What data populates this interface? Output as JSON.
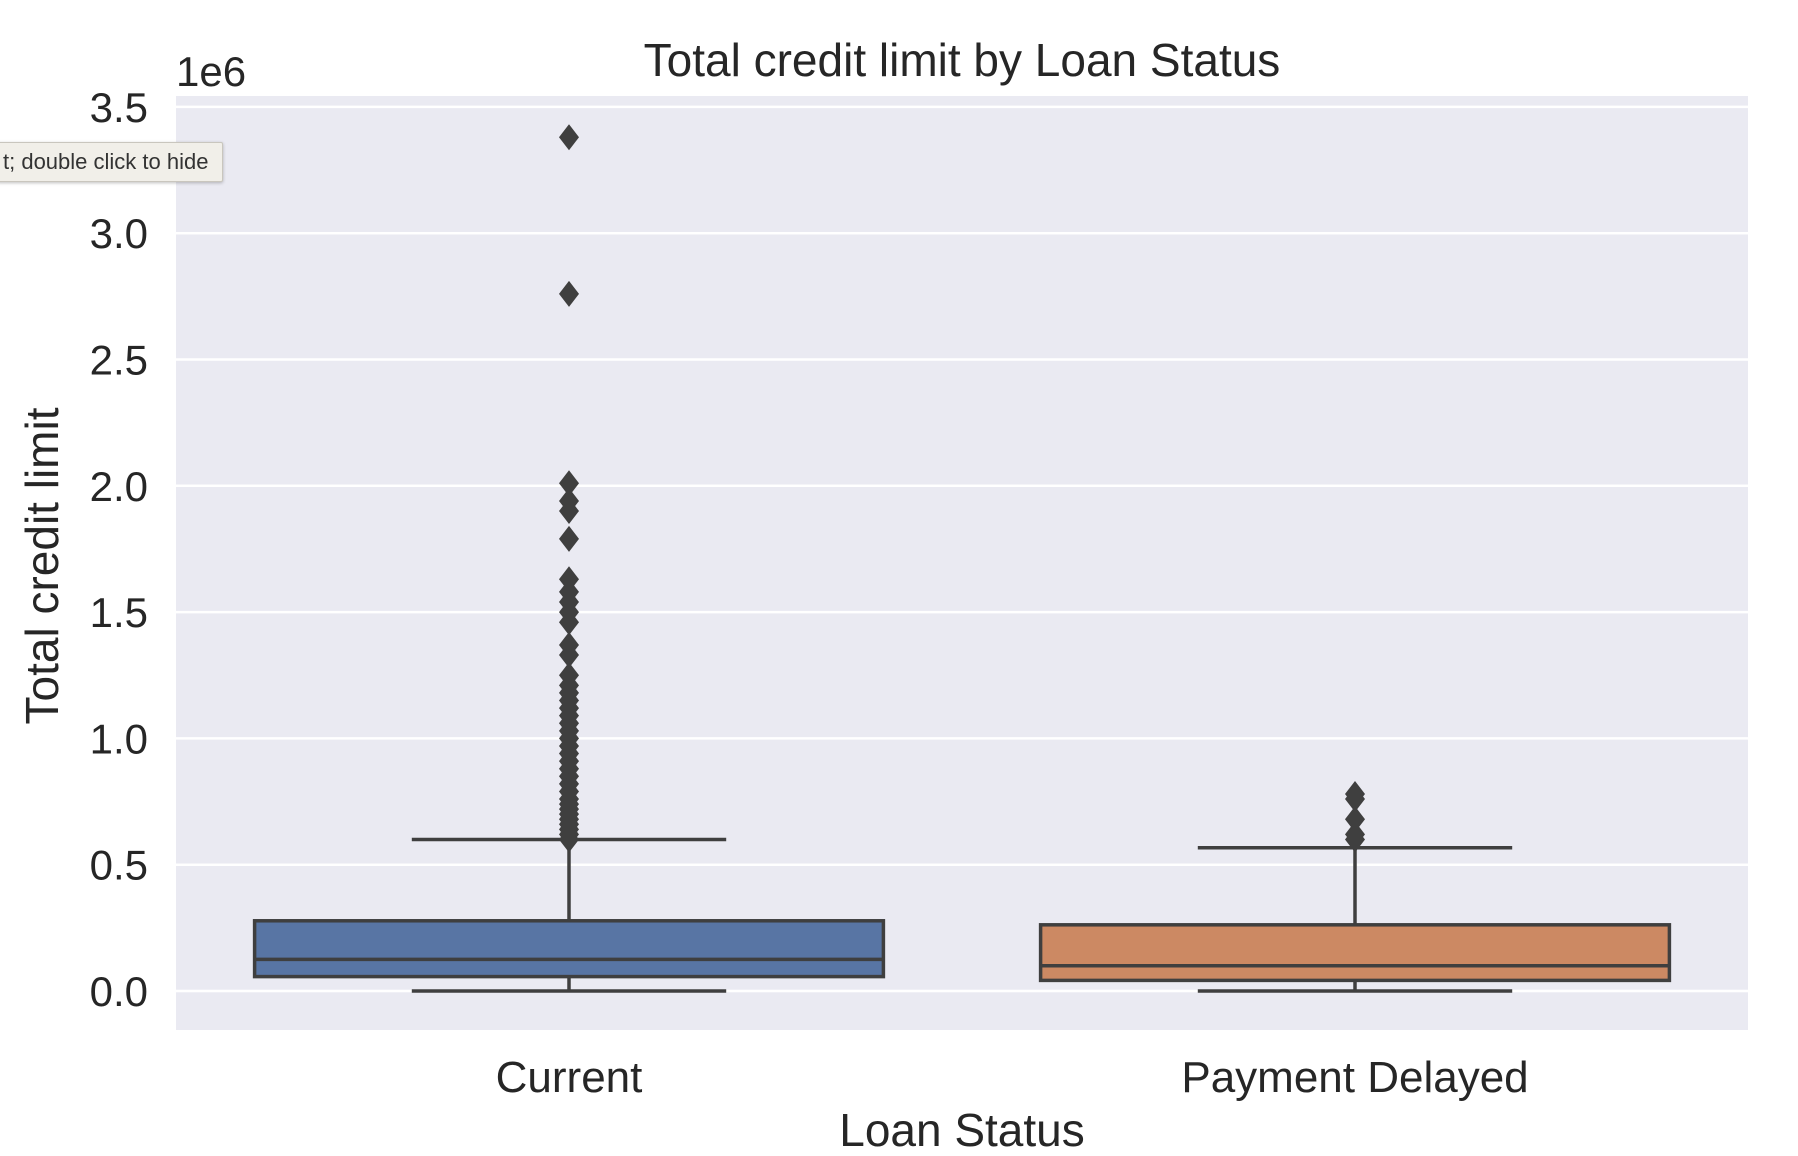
{
  "tooltip": {
    "text": "t; double click to hide"
  },
  "colors": {
    "background": "#ffffff",
    "plot_bg": "#eaeaf2",
    "grid": "#ffffff",
    "line": "#3f3f3f",
    "text": "#262626"
  },
  "chart_data": {
    "type": "box",
    "title": "Total credit limit by Loan Status",
    "xlabel": "Loan Status",
    "ylabel": "Total credit limit",
    "offset_label": "1e6",
    "ylim": [
      -0.16,
      3.55
    ],
    "yticks": [
      0.0,
      0.5,
      1.0,
      1.5,
      2.0,
      2.5,
      3.0,
      3.5
    ],
    "ytick_labels": [
      "0.0",
      "0.5",
      "1.0",
      "1.5",
      "2.0",
      "2.5",
      "3.0",
      "3.5"
    ],
    "grid": true,
    "categories": [
      "Current",
      "Payment Delayed"
    ],
    "boxes": [
      {
        "category": "Current",
        "color": "#5875a4",
        "whisker_low": 0.0,
        "q1": 0.057,
        "median": 0.125,
        "q3": 0.278,
        "whisker_high": 0.6,
        "outliers": [
          0.6,
          0.62,
          0.64,
          0.66,
          0.68,
          0.7,
          0.72,
          0.74,
          0.76,
          0.79,
          0.82,
          0.85,
          0.88,
          0.91,
          0.94,
          0.97,
          1.0,
          1.03,
          1.06,
          1.09,
          1.12,
          1.15,
          1.18,
          1.21,
          1.25,
          1.33,
          1.37,
          1.46,
          1.5,
          1.54,
          1.58,
          1.63,
          1.79,
          1.9,
          1.94,
          2.01,
          2.76,
          3.38
        ]
      },
      {
        "category": "Payment Delayed",
        "color": "#cc8963",
        "whisker_low": 0.0,
        "q1": 0.042,
        "median": 0.1,
        "q3": 0.262,
        "whisker_high": 0.567,
        "outliers": [
          0.6,
          0.62,
          0.68,
          0.76,
          0.78
        ]
      }
    ]
  }
}
